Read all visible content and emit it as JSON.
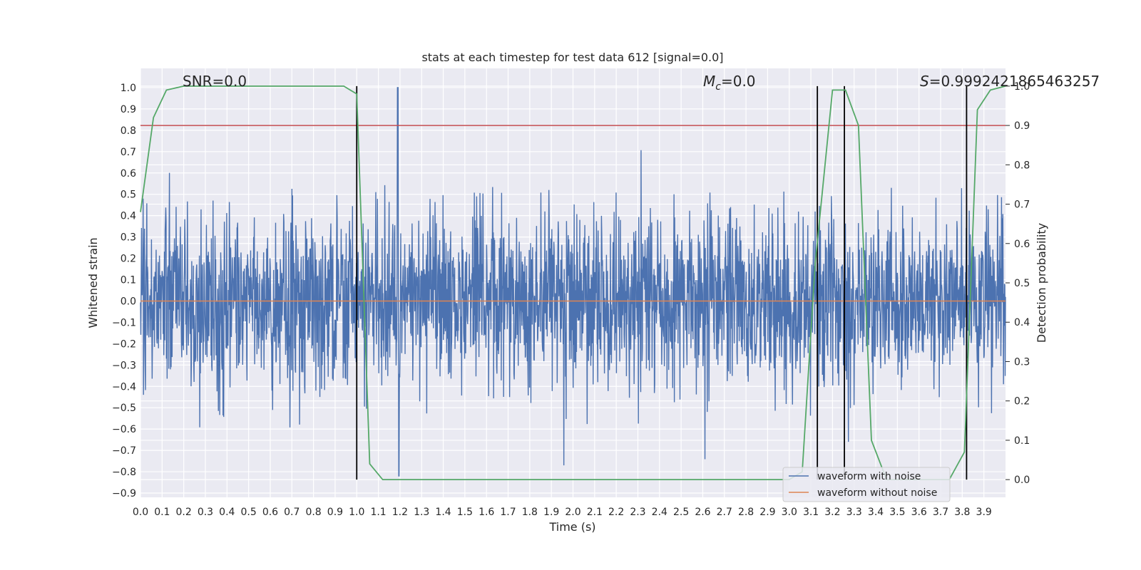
{
  "chart_data": {
    "type": "line",
    "title": "stats at each timestep for test data 612 [signal=0.0]",
    "xlabel": "Time (s)",
    "ylabel": "Whitened strain",
    "y2label": "Detection probability",
    "xlim": [
      0.0,
      4.0
    ],
    "ylim": [
      -0.92,
      1.09
    ],
    "y2lim": [
      -0.045,
      1.045
    ],
    "x_ticks": [
      "0.0",
      "0.1",
      "0.2",
      "0.3",
      "0.4",
      "0.5",
      "0.6",
      "0.7",
      "0.8",
      "0.9",
      "1.0",
      "1.1",
      "1.2",
      "1.3",
      "1.4",
      "1.5",
      "1.6",
      "1.7",
      "1.8",
      "1.9",
      "2.0",
      "2.1",
      "2.2",
      "2.3",
      "2.4",
      "2.5",
      "2.6",
      "2.7",
      "2.8",
      "2.9",
      "3.0",
      "3.1",
      "3.2",
      "3.3",
      "3.4",
      "3.5",
      "3.6",
      "3.7",
      "3.8",
      "3.9"
    ],
    "y_ticks": [
      "1.0",
      "0.9",
      "0.8",
      "0.7",
      "0.6",
      "0.5",
      "0.4",
      "0.3",
      "0.2",
      "0.1",
      "0.0",
      "−0.1",
      "−0.2",
      "−0.3",
      "−0.4",
      "−0.5",
      "−0.6",
      "−0.7",
      "−0.8",
      "−0.9"
    ],
    "y2_ticks": [
      "1.0",
      "0.9",
      "0.8",
      "0.7",
      "0.6",
      "0.5",
      "0.4",
      "0.3",
      "0.2",
      "0.1",
      "0.0"
    ],
    "grid": true,
    "background": "#eaeaf2",
    "annotations": [
      {
        "text": "SNR=0.0",
        "x": 0.2
      },
      {
        "math": "M",
        "sub": "c",
        "text": "=0.0",
        "x": 2.6
      },
      {
        "math": "S",
        "text": "=0.9992421865463257",
        "x": 3.6
      }
    ],
    "series": [
      {
        "name": "waveform with noise",
        "color": "#4c72b0",
        "kind": "noise",
        "amplitude_max": 1.0,
        "amplitude_min": -0.82
      },
      {
        "name": "waveform without noise",
        "color": "#dd8452",
        "kind": "constant",
        "value": 0.0
      }
    ],
    "detection_probability": {
      "color": "#55a868",
      "x": [
        0.0,
        0.06,
        0.12,
        0.2,
        0.4,
        0.6,
        0.8,
        0.94,
        1.0,
        1.06,
        1.12,
        1.2,
        1.5,
        2.0,
        2.5,
        3.0,
        3.06,
        3.12,
        3.2,
        3.26,
        3.32,
        3.38,
        3.45,
        3.6,
        3.74,
        3.81,
        3.87,
        3.93,
        4.0
      ],
      "y": [
        0.68,
        0.92,
        0.99,
        1.0,
        1.0,
        1.0,
        1.0,
        1.0,
        0.98,
        0.04,
        0.0,
        0.0,
        0.0,
        0.0,
        0.0,
        0.0,
        0.02,
        0.55,
        0.99,
        0.99,
        0.9,
        0.1,
        0.0,
        0.0,
        0.0,
        0.07,
        0.94,
        0.99,
        1.0
      ]
    },
    "threshold": {
      "color": "#c44e52",
      "y2": 0.9
    },
    "vlines": [
      1.0,
      3.13,
      3.255,
      3.82
    ],
    "vline_color": "#000000",
    "legend": {
      "placement": "lower-right",
      "entries": [
        "waveform with noise",
        "waveform without noise"
      ]
    }
  }
}
